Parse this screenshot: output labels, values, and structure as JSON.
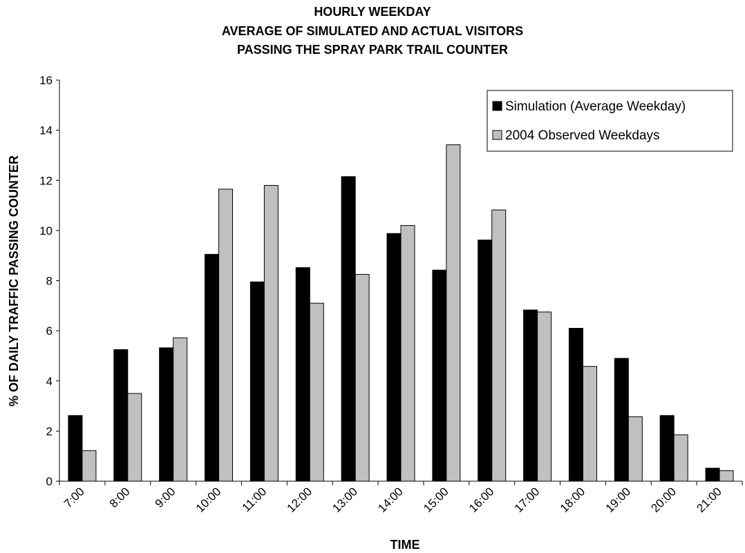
{
  "chart_data": {
    "type": "bar",
    "title_lines": [
      "HOURLY WEEKDAY",
      "AVERAGE OF SIMULATED AND ACTUAL VISITORS",
      "PASSING THE SPRAY PARK TRAIL COUNTER"
    ],
    "xlabel": "TIME",
    "ylabel": "% OF DAILY TRAFFIC PASSING COUNTER",
    "categories": [
      "7:00",
      "8:00",
      "9:00",
      "10:00",
      "11:00",
      "12:00",
      "13:00",
      "14:00",
      "15:00",
      "16:00",
      "17:00",
      "18:00",
      "19:00",
      "20:00",
      "21:00"
    ],
    "ylim": [
      0,
      16
    ],
    "yticks": [
      "0",
      "2",
      "4",
      "6",
      "8",
      "10",
      "12",
      "14",
      "16"
    ],
    "grid": false,
    "legend_position": "top-right",
    "series": [
      {
        "name": "Simulation (Average Weekday)",
        "color": "#000000",
        "values": [
          2.62,
          5.25,
          5.32,
          9.05,
          7.95,
          8.52,
          12.15,
          9.88,
          8.42,
          9.62,
          6.83,
          6.1,
          4.9,
          2.62,
          0.52
        ]
      },
      {
        "name": "2004 Observed Weekdays",
        "color": "#c0c0c0",
        "values": [
          1.22,
          3.5,
          5.72,
          11.65,
          11.8,
          7.1,
          8.25,
          10.2,
          13.42,
          10.82,
          6.75,
          4.58,
          2.57,
          1.85,
          0.42
        ]
      }
    ]
  }
}
